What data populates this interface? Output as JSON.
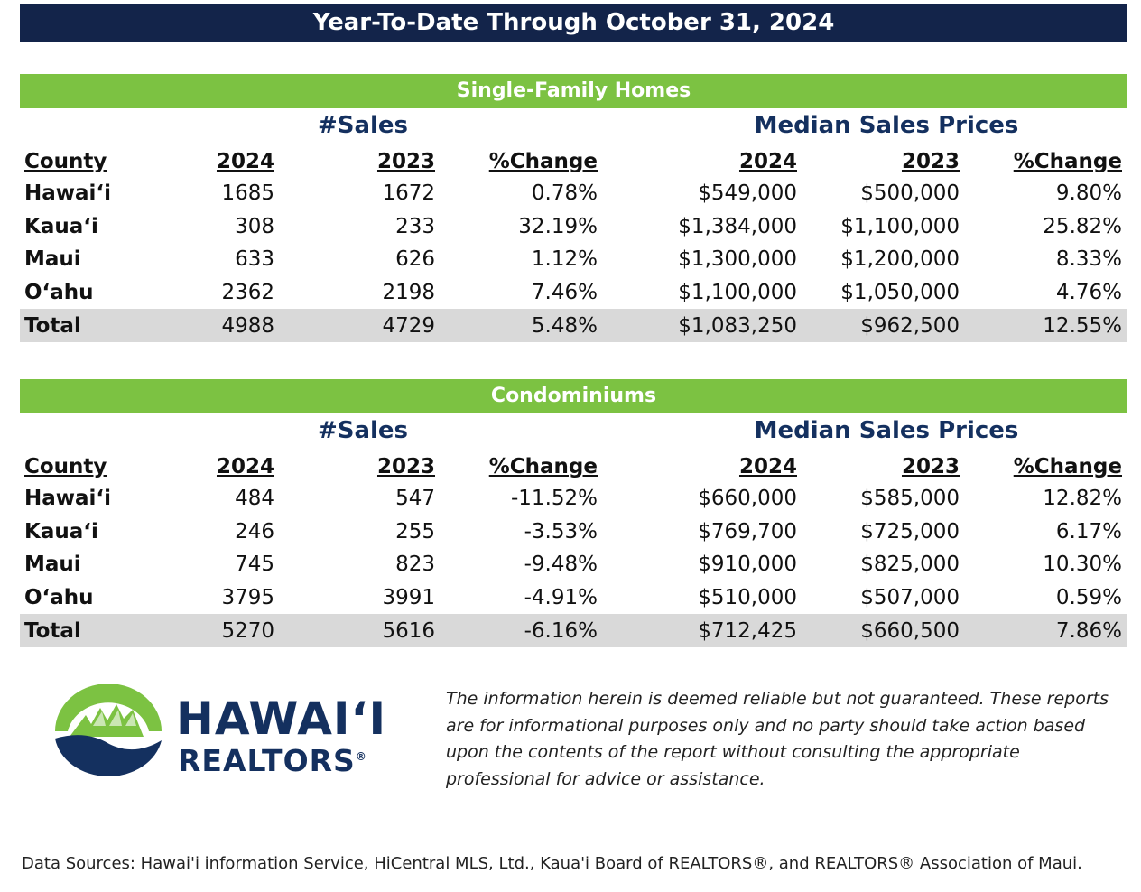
{
  "title": "Year-To-Date Through October 31, 2024",
  "tables": [
    {
      "section": "Single-Family Homes",
      "group_sales": "#Sales",
      "group_median": "Median Sales Prices",
      "headers": [
        "County",
        "2024",
        "2023",
        "%Change",
        "2024",
        "2023",
        "%Change"
      ],
      "rows": [
        [
          "Hawai‘i",
          "1685",
          "1672",
          "0.78%",
          "$549,000",
          "$500,000",
          "9.80%"
        ],
        [
          "Kaua‘i",
          "308",
          "233",
          "32.19%",
          "$1,384,000",
          "$1,100,000",
          "25.82%"
        ],
        [
          "Maui",
          "633",
          "626",
          "1.12%",
          "$1,300,000",
          "$1,200,000",
          "8.33%"
        ],
        [
          "O‘ahu",
          "2362",
          "2198",
          "7.46%",
          "$1,100,000",
          "$1,050,000",
          "4.76%"
        ],
        [
          "Total",
          "4988",
          "4729",
          "5.48%",
          "$1,083,250",
          "$962,500",
          "12.55%"
        ]
      ]
    },
    {
      "section": "Condominiums",
      "group_sales": "#Sales",
      "group_median": "Median Sales Prices",
      "headers": [
        "County",
        "2024",
        "2023",
        "%Change",
        "2024",
        "2023",
        "%Change"
      ],
      "rows": [
        [
          "Hawai‘i",
          "484",
          "547",
          "-11.52%",
          "$660,000",
          "$585,000",
          "12.82%"
        ],
        [
          "Kaua‘i",
          "246",
          "255",
          "-3.53%",
          "$769,700",
          "$725,000",
          "6.17%"
        ],
        [
          "Maui",
          "745",
          "823",
          "-9.48%",
          "$910,000",
          "$825,000",
          "10.30%"
        ],
        [
          "O‘ahu",
          "3795",
          "3991",
          "-4.91%",
          "$510,000",
          "$507,000",
          "0.59%"
        ],
        [
          "Total",
          "5270",
          "5616",
          "-6.16%",
          "$712,425",
          "$660,500",
          "7.86%"
        ]
      ]
    }
  ],
  "logo": {
    "line1": "HAWAI‘I",
    "line2": "REALTORS",
    "mark": "®"
  },
  "disclaimer": "The information herein is deemed reliable but not guaranteed. These reports are for informational purposes only and no party should take action based upon the contents of the report without consulting the appropriate professional for advice or assistance.",
  "footer": "Data Sources: Hawai'i information Service, HiCentral MLS, Ltd., Kaua'i Board of REALTORS®, and REALTORS® Association of Maui.",
  "colors": {
    "navy": "#13244a",
    "green": "#7cc242",
    "total_row": "#d9d9d9",
    "heading_blue": "#14305f"
  }
}
